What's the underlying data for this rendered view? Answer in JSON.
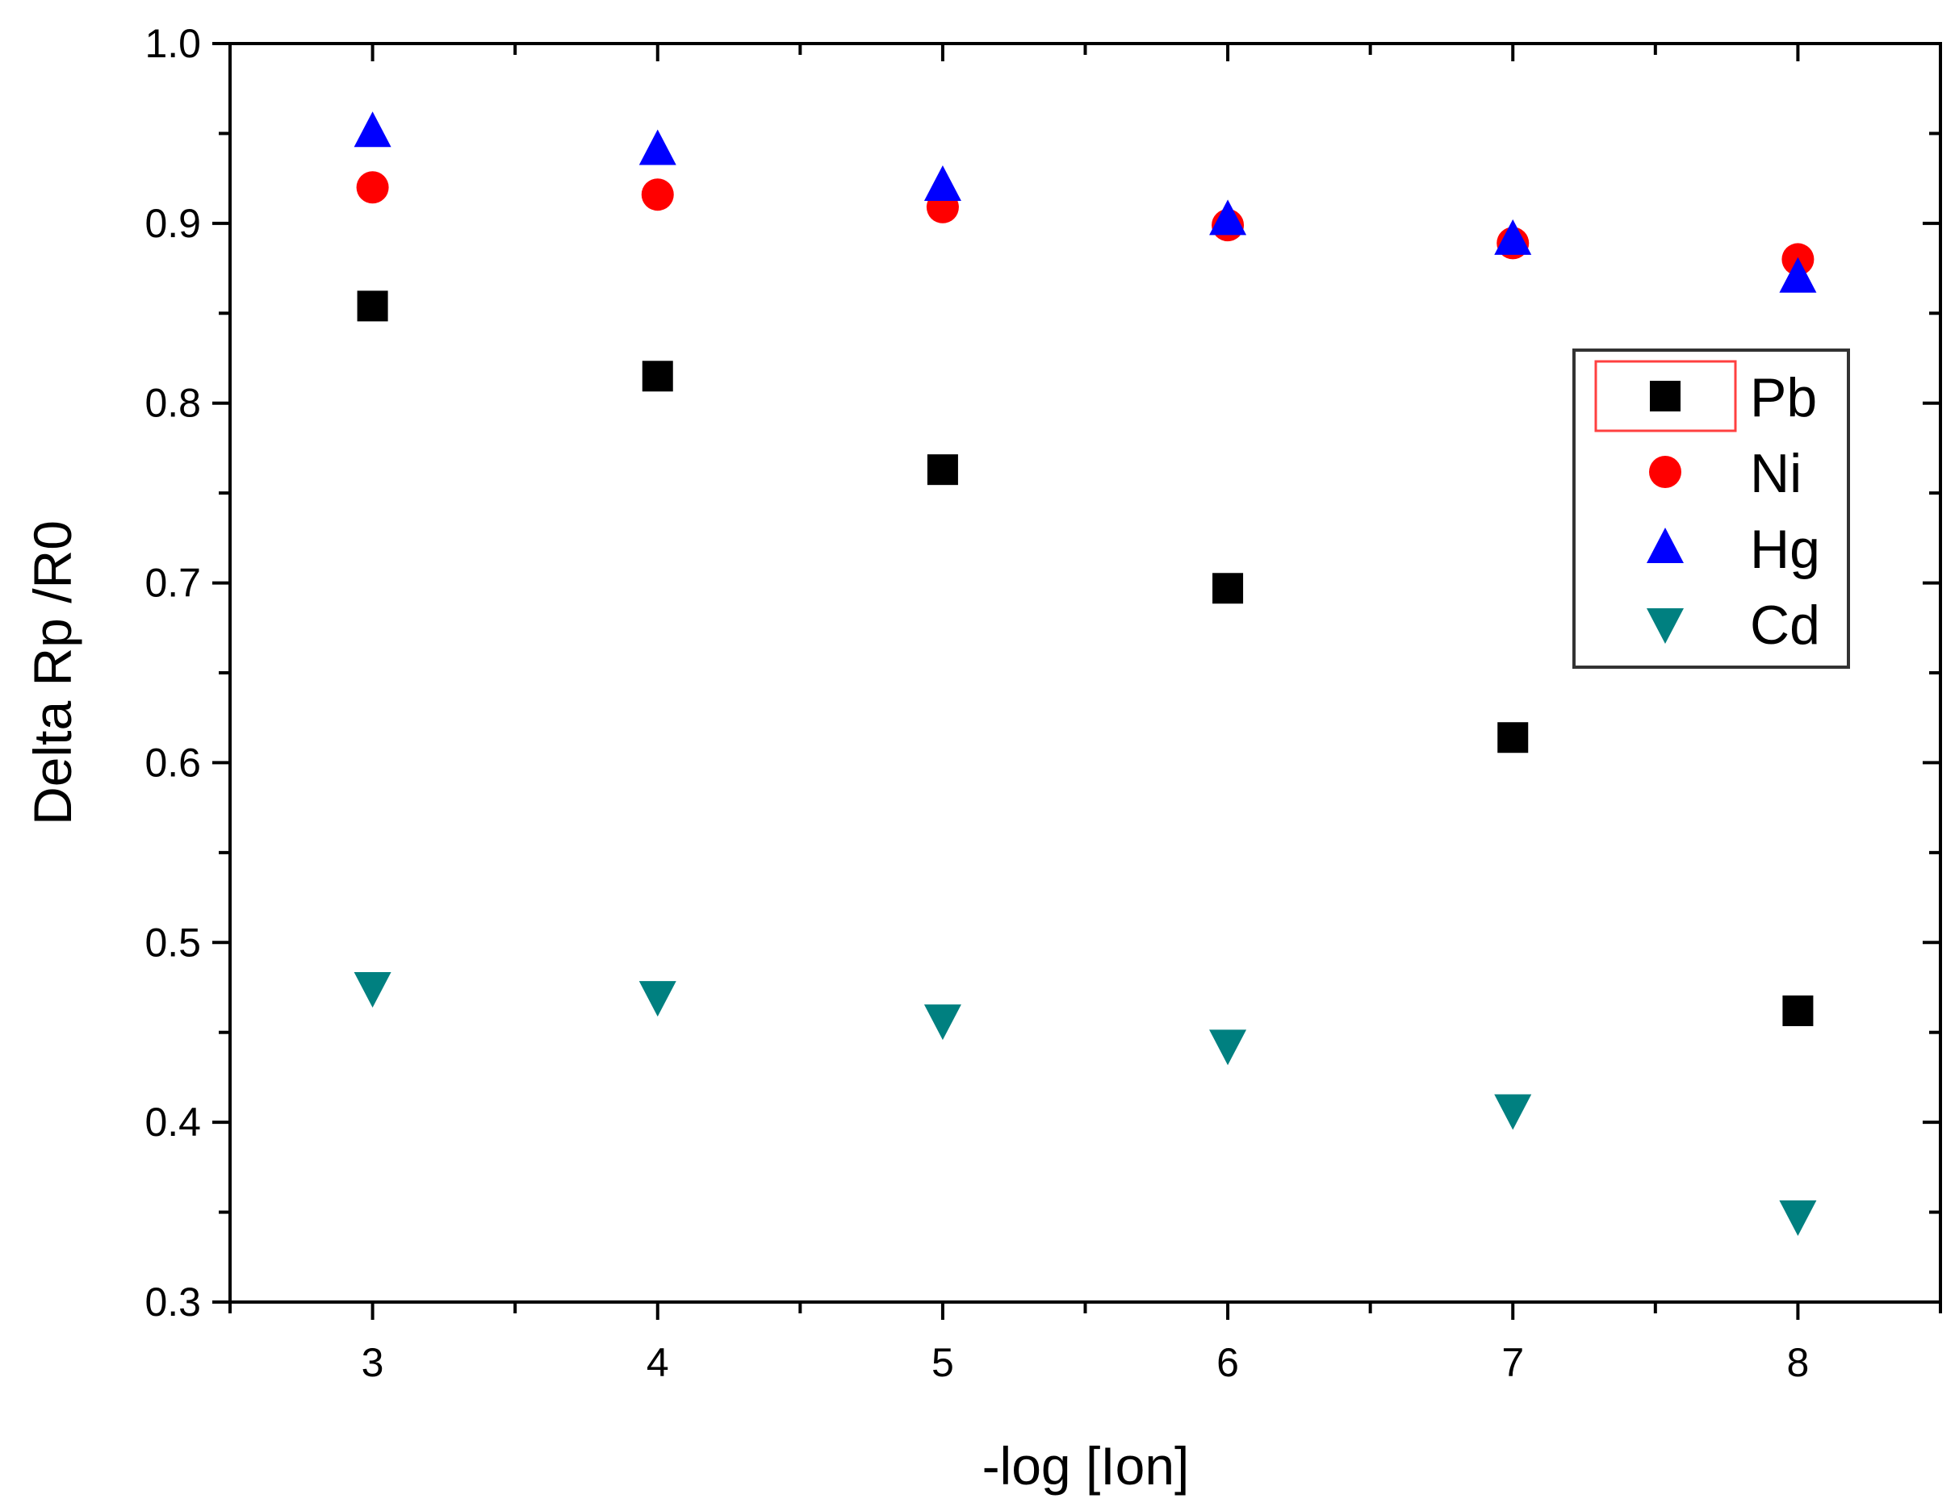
{
  "chart_data": {
    "type": "scatter",
    "title": "",
    "xlabel": "-log [Ion]",
    "ylabel": "Delta Rp /R0",
    "xlim": [
      2.5,
      8.5
    ],
    "ylim": [
      0.3,
      1.0
    ],
    "xticks": [
      "3",
      "4",
      "5",
      "6",
      "7",
      "8"
    ],
    "yticks": [
      "0.3",
      "0.4",
      "0.5",
      "0.6",
      "0.7",
      "0.8",
      "0.9",
      "1.0"
    ],
    "grid": false,
    "legend_position": "right",
    "x": [
      3,
      4,
      5,
      6,
      7,
      8
    ],
    "series": [
      {
        "name": "Pb",
        "marker": "square",
        "color": "#000000",
        "values": [
          0.854,
          0.815,
          0.763,
          0.697,
          0.614,
          0.462
        ]
      },
      {
        "name": "Ni",
        "marker": "circle",
        "color": "#ff0000",
        "values": [
          0.92,
          0.916,
          0.909,
          0.899,
          0.889,
          0.88
        ]
      },
      {
        "name": "Hg",
        "marker": "triangle-up",
        "color": "#0000ff",
        "values": [
          0.951,
          0.941,
          0.921,
          0.902,
          0.891,
          0.87
        ]
      },
      {
        "name": "Cd",
        "marker": "triangle-down",
        "color": "#008080",
        "values": [
          0.475,
          0.47,
          0.457,
          0.443,
          0.407,
          0.348
        ]
      }
    ]
  }
}
